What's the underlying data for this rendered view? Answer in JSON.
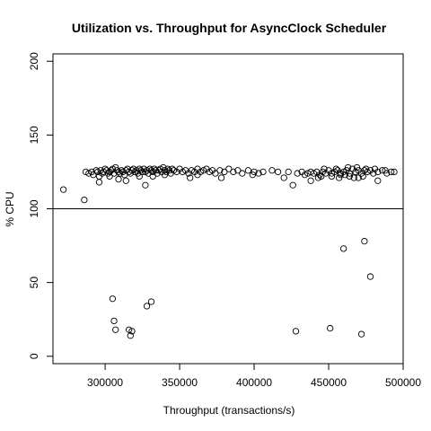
{
  "chart_data": {
    "type": "scatter",
    "title": "Utilization vs. Throughput for AsyncClock Scheduler",
    "xlabel": "Throughput (transactions/s)",
    "ylabel": "% CPU",
    "xlim": [
      265000,
      500000
    ],
    "ylim": [
      -5,
      205
    ],
    "xticks": [
      300000,
      350000,
      400000,
      450000,
      500000
    ],
    "xtick_labels": [
      "300000",
      "350000",
      "400000",
      "450000",
      "500000"
    ],
    "yticks": [
      0,
      50,
      100,
      150,
      200
    ],
    "ytick_labels": [
      "0",
      "50",
      "100",
      "150",
      "200"
    ],
    "reference_line": {
      "orientation": "horizontal",
      "y": 100
    },
    "marker": "open-circle",
    "grid": false,
    "points": [
      [
        272000,
        113
      ],
      [
        286000,
        106
      ],
      [
        305000,
        39
      ],
      [
        306000,
        24
      ],
      [
        307000,
        18
      ],
      [
        316000,
        18
      ],
      [
        317000,
        14
      ],
      [
        318000,
        17
      ],
      [
        328000,
        34
      ],
      [
        331000,
        37
      ],
      [
        428000,
        17
      ],
      [
        451000,
        19
      ],
      [
        460000,
        73
      ],
      [
        472000,
        15
      ],
      [
        474000,
        78
      ],
      [
        478000,
        54
      ],
      [
        287000,
        125
      ],
      [
        289000,
        124
      ],
      [
        291000,
        125
      ],
      [
        292000,
        123
      ],
      [
        294000,
        126
      ],
      [
        295000,
        125
      ],
      [
        296000,
        122
      ],
      [
        297000,
        126
      ],
      [
        298000,
        124
      ],
      [
        299000,
        125
      ],
      [
        300000,
        127
      ],
      [
        301000,
        126
      ],
      [
        302000,
        124
      ],
      [
        303000,
        125
      ],
      [
        304000,
        126
      ],
      [
        305000,
        127
      ],
      [
        306000,
        124
      ],
      [
        307000,
        128
      ],
      [
        308000,
        126
      ],
      [
        309000,
        125
      ],
      [
        310000,
        124
      ],
      [
        311000,
        126
      ],
      [
        312000,
        125
      ],
      [
        313000,
        123
      ],
      [
        314000,
        126
      ],
      [
        315000,
        127
      ],
      [
        316000,
        125
      ],
      [
        317000,
        124
      ],
      [
        318000,
        126
      ],
      [
        319000,
        127
      ],
      [
        320000,
        125
      ],
      [
        321000,
        126
      ],
      [
        322000,
        124
      ],
      [
        323000,
        127
      ],
      [
        324000,
        126
      ],
      [
        325000,
        125
      ],
      [
        326000,
        127
      ],
      [
        327000,
        125
      ],
      [
        328000,
        126
      ],
      [
        329000,
        124
      ],
      [
        330000,
        127
      ],
      [
        331000,
        126
      ],
      [
        332000,
        125
      ],
      [
        333000,
        127
      ],
      [
        334000,
        126
      ],
      [
        335000,
        124
      ],
      [
        336000,
        126
      ],
      [
        337000,
        127
      ],
      [
        338000,
        125
      ],
      [
        339000,
        128
      ],
      [
        340000,
        126
      ],
      [
        341000,
        125
      ],
      [
        342000,
        127
      ],
      [
        343000,
        126
      ],
      [
        344000,
        124
      ],
      [
        345000,
        127
      ],
      [
        346000,
        126
      ],
      [
        348000,
        125
      ],
      [
        350000,
        127
      ],
      [
        352000,
        125
      ],
      [
        354000,
        126
      ],
      [
        356000,
        124
      ],
      [
        358000,
        126
      ],
      [
        360000,
        125
      ],
      [
        362000,
        127
      ],
      [
        364000,
        125
      ],
      [
        366000,
        126
      ],
      [
        368000,
        127
      ],
      [
        370000,
        125
      ],
      [
        372000,
        126
      ],
      [
        374000,
        124
      ],
      [
        377000,
        126
      ],
      [
        380000,
        125
      ],
      [
        383000,
        127
      ],
      [
        386000,
        125
      ],
      [
        389000,
        126
      ],
      [
        392000,
        124
      ],
      [
        396000,
        126
      ],
      [
        400000,
        125
      ],
      [
        403000,
        124
      ],
      [
        406000,
        125
      ],
      [
        296000,
        118
      ],
      [
        303000,
        122
      ],
      [
        309000,
        120
      ],
      [
        314000,
        119
      ],
      [
        323000,
        122
      ],
      [
        327000,
        116
      ],
      [
        332000,
        122
      ],
      [
        340000,
        123
      ],
      [
        357000,
        121
      ],
      [
        362000,
        123
      ],
      [
        378000,
        121
      ],
      [
        399000,
        123
      ],
      [
        420000,
        121
      ],
      [
        426000,
        116
      ],
      [
        438000,
        119
      ],
      [
        443000,
        121
      ],
      [
        452000,
        122
      ],
      [
        458000,
        123
      ],
      [
        464000,
        122
      ],
      [
        470000,
        121
      ],
      [
        483000,
        119
      ],
      [
        429000,
        124
      ],
      [
        432000,
        125
      ],
      [
        434000,
        123
      ],
      [
        436000,
        124
      ],
      [
        438000,
        125
      ],
      [
        440000,
        124
      ],
      [
        442000,
        125
      ],
      [
        444000,
        123
      ],
      [
        446000,
        125
      ],
      [
        448000,
        124
      ],
      [
        450000,
        126
      ],
      [
        452000,
        124
      ],
      [
        454000,
        125
      ],
      [
        456000,
        126
      ],
      [
        458000,
        124
      ],
      [
        460000,
        125
      ],
      [
        462000,
        126
      ],
      [
        464000,
        124
      ],
      [
        466000,
        127
      ],
      [
        468000,
        125
      ],
      [
        470000,
        126
      ],
      [
        472000,
        124
      ],
      [
        474000,
        126
      ],
      [
        476000,
        125
      ],
      [
        478000,
        126
      ],
      [
        480000,
        124
      ],
      [
        483000,
        125
      ],
      [
        486000,
        126
      ],
      [
        489000,
        124
      ],
      [
        492000,
        125
      ],
      [
        447000,
        127
      ],
      [
        455000,
        127
      ],
      [
        463000,
        128
      ],
      [
        469000,
        128
      ],
      [
        475000,
        127
      ],
      [
        481000,
        127
      ],
      [
        488000,
        126
      ],
      [
        494000,
        125
      ],
      [
        412000,
        126
      ],
      [
        416000,
        125
      ],
      [
        423000,
        125
      ],
      [
        445000,
        122
      ],
      [
        457000,
        121
      ],
      [
        467000,
        121
      ],
      [
        473000,
        122
      ],
      [
        461000,
        123
      ]
    ]
  }
}
